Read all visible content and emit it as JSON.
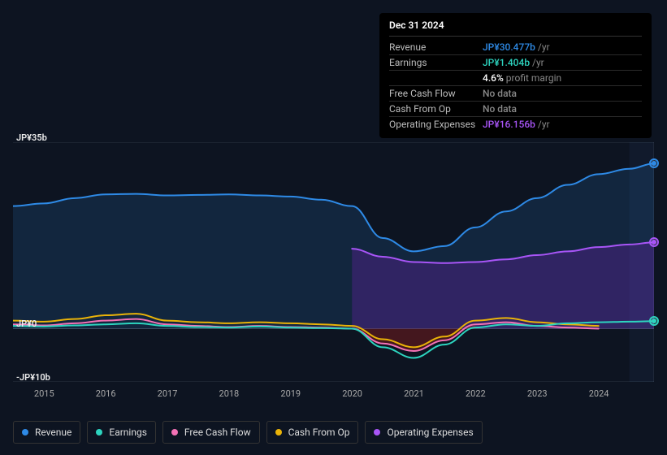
{
  "colors": {
    "revenue": "#2e8ae6",
    "earnings": "#2dd4bf",
    "free_cash_flow": "#f472b6",
    "cash_from_op": "#eab308",
    "operating_expenses": "#a855f7",
    "revenue_fill": "rgba(46,138,230,0.15)",
    "opex_fill": "rgba(107,33,168,0.35)",
    "fcf_fill": "rgba(153,27,27,0.4)",
    "grid": "#2a3441",
    "bg": "#0d1421",
    "tooltip_bg": "#000000"
  },
  "chart": {
    "ylim": [
      -10,
      35
    ],
    "y_ticks": [
      {
        "value": 35,
        "label": "JP¥35b"
      },
      {
        "value": 0,
        "label": "JP¥0"
      },
      {
        "value": -10,
        "label": "-JP¥10b"
      }
    ],
    "x_labels": [
      "2015",
      "2016",
      "2017",
      "2018",
      "2019",
      "2020",
      "2021",
      "2022",
      "2023",
      "2024"
    ],
    "x_start": 2014.5,
    "x_end": 2024.9
  },
  "series": {
    "revenue": {
      "label": "Revenue",
      "color_key": "revenue",
      "points": [
        [
          2014.5,
          23
        ],
        [
          2015,
          23.5
        ],
        [
          2015.5,
          24.5
        ],
        [
          2016,
          25.2
        ],
        [
          2016.5,
          25.3
        ],
        [
          2017,
          25
        ],
        [
          2017.5,
          25.1
        ],
        [
          2018,
          25.2
        ],
        [
          2018.5,
          25
        ],
        [
          2019,
          24.8
        ],
        [
          2019.5,
          24.2
        ],
        [
          2020,
          23
        ],
        [
          2020.5,
          17
        ],
        [
          2021,
          14.5
        ],
        [
          2021.5,
          15.5
        ],
        [
          2022,
          19
        ],
        [
          2022.5,
          22
        ],
        [
          2023,
          24.5
        ],
        [
          2023.5,
          27
        ],
        [
          2024,
          29
        ],
        [
          2024.5,
          30
        ],
        [
          2024.9,
          31
        ]
      ]
    },
    "operating_expenses": {
      "label": "Operating Expenses",
      "color_key": "operating_expenses",
      "start_x": 2020,
      "points": [
        [
          2020,
          15
        ],
        [
          2020.5,
          13.5
        ],
        [
          2021,
          12.5
        ],
        [
          2021.5,
          12.3
        ],
        [
          2022,
          12.5
        ],
        [
          2022.5,
          13
        ],
        [
          2023,
          13.8
        ],
        [
          2023.5,
          14.5
        ],
        [
          2024,
          15.3
        ],
        [
          2024.5,
          15.8
        ],
        [
          2024.9,
          16.2
        ]
      ]
    },
    "cash_from_op": {
      "label": "Cash From Op",
      "color_key": "cash_from_op",
      "points": [
        [
          2014.5,
          1.5
        ],
        [
          2015,
          1.3
        ],
        [
          2015.5,
          1.8
        ],
        [
          2016,
          2.5
        ],
        [
          2016.5,
          2.8
        ],
        [
          2017,
          1.5
        ],
        [
          2017.5,
          1.2
        ],
        [
          2018,
          1
        ],
        [
          2018.5,
          1.2
        ],
        [
          2019,
          1
        ],
        [
          2019.5,
          0.8
        ],
        [
          2020,
          0.5
        ],
        [
          2020.5,
          -2
        ],
        [
          2021,
          -3.5
        ],
        [
          2021.5,
          -1.5
        ],
        [
          2022,
          1.5
        ],
        [
          2022.5,
          2
        ],
        [
          2023,
          1.2
        ],
        [
          2023.5,
          0.8
        ],
        [
          2024,
          0.5
        ]
      ]
    },
    "free_cash_flow": {
      "label": "Free Cash Flow",
      "color_key": "free_cash_flow",
      "points": [
        [
          2014.5,
          0.8
        ],
        [
          2015,
          0.6
        ],
        [
          2015.5,
          1
        ],
        [
          2016,
          1.5
        ],
        [
          2016.5,
          1.8
        ],
        [
          2017,
          0.8
        ],
        [
          2017.5,
          0.5
        ],
        [
          2018,
          0.3
        ],
        [
          2018.5,
          0.5
        ],
        [
          2019,
          0.3
        ],
        [
          2019.5,
          0.2
        ],
        [
          2020,
          0
        ],
        [
          2020.5,
          -2.8
        ],
        [
          2021,
          -4.2
        ],
        [
          2021.5,
          -2.2
        ],
        [
          2022,
          0.8
        ],
        [
          2022.5,
          1.2
        ],
        [
          2023,
          0.5
        ],
        [
          2023.5,
          0.2
        ],
        [
          2024,
          0
        ]
      ]
    },
    "earnings": {
      "label": "Earnings",
      "color_key": "earnings",
      "points": [
        [
          2014.5,
          0.5
        ],
        [
          2015,
          0.4
        ],
        [
          2015.5,
          0.6
        ],
        [
          2016,
          0.8
        ],
        [
          2016.5,
          1
        ],
        [
          2017,
          0.5
        ],
        [
          2017.5,
          0.3
        ],
        [
          2018,
          0.2
        ],
        [
          2018.5,
          0.4
        ],
        [
          2019,
          0.2
        ],
        [
          2019.5,
          0.1
        ],
        [
          2020,
          0
        ],
        [
          2020.5,
          -3.5
        ],
        [
          2021,
          -5.5
        ],
        [
          2021.5,
          -3
        ],
        [
          2022,
          0.2
        ],
        [
          2022.5,
          0.8
        ],
        [
          2023,
          0.5
        ],
        [
          2023.5,
          1
        ],
        [
          2024,
          1.2
        ],
        [
          2024.5,
          1.3
        ],
        [
          2024.9,
          1.4
        ]
      ]
    }
  },
  "tooltip": {
    "date": "Dec 31 2024",
    "rows": [
      {
        "label": "Revenue",
        "value": "JP¥30.477b",
        "suffix": "/yr",
        "color_key": "revenue"
      },
      {
        "label": "Earnings",
        "value": "JP¥1.404b",
        "suffix": "/yr",
        "color_key": "earnings"
      },
      {
        "label": "",
        "value": "4.6%",
        "suffix": "profit margin",
        "color_key": null
      },
      {
        "label": "Free Cash Flow",
        "value": "No data",
        "suffix": "",
        "color_key": "muted"
      },
      {
        "label": "Cash From Op",
        "value": "No data",
        "suffix": "",
        "color_key": "muted"
      },
      {
        "label": "Operating Expenses",
        "value": "JP¥16.156b",
        "suffix": "/yr",
        "color_key": "operating_expenses"
      }
    ]
  },
  "legend": [
    {
      "key": "revenue",
      "label": "Revenue"
    },
    {
      "key": "earnings",
      "label": "Earnings"
    },
    {
      "key": "free_cash_flow",
      "label": "Free Cash Flow"
    },
    {
      "key": "cash_from_op",
      "label": "Cash From Op"
    },
    {
      "key": "operating_expenses",
      "label": "Operating Expenses"
    }
  ],
  "end_pulses": [
    {
      "color_key": "revenue",
      "y": 31
    },
    {
      "color_key": "operating_expenses",
      "y": 16.2
    },
    {
      "color_key": "earnings",
      "y": 1.4
    }
  ]
}
